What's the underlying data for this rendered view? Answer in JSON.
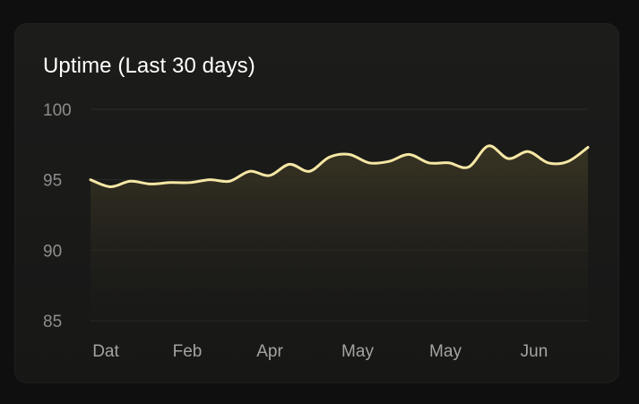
{
  "card": {
    "title": "Uptime (Last 30 days)"
  },
  "colors": {
    "background": "#0f0f0f",
    "card": "#1b1b1a",
    "line": "#f6e7a5",
    "area_top": "#3b3624",
    "grid": "#2b2b2b",
    "tick_text": "#a3a3a3"
  },
  "chart_data": {
    "type": "area",
    "title": "Uptime (Last 30 days)",
    "xlabel": "",
    "ylabel": "",
    "ylim": [
      85,
      100
    ],
    "yticks": [
      100,
      95,
      90,
      85
    ],
    "xticks": [
      "Dat",
      "Feb",
      "Apr",
      "May",
      "May",
      "Jun"
    ],
    "grid": true,
    "legend": "none",
    "series": [
      {
        "values": [
          95.0,
          94.5,
          94.9,
          94.7,
          94.8,
          94.8,
          95.0,
          94.9,
          95.6,
          95.3,
          96.1,
          95.6,
          96.6,
          96.8,
          96.2,
          96.3,
          96.8,
          96.2,
          96.2,
          95.9,
          97.4,
          96.5,
          97.0,
          96.2,
          96.3,
          97.3
        ]
      }
    ]
  }
}
